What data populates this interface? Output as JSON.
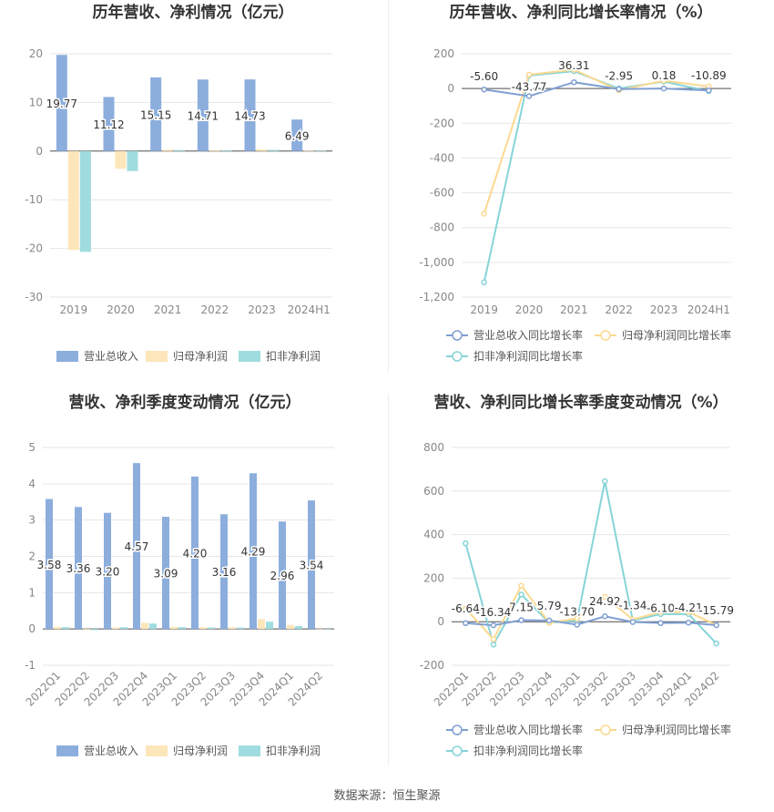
{
  "footer": {
    "source": "数据来源：恒生聚源"
  },
  "colors": {
    "revenue": "#8caedd",
    "net_profit": "#fde6ba",
    "deducted_profit": "#9fdcdf",
    "rev_line": "#7f9fd2",
    "np_line": "#fbd990",
    "dp_line": "#86d4d8",
    "grid": "#e6e6e6",
    "axis": "#555555",
    "tick": "#888888",
    "title": "#333333"
  },
  "chart_data": [
    {
      "type": "bar",
      "title": "历年营收、净利情况（亿元）",
      "categories": [
        "2019",
        "2020",
        "2021",
        "2022",
        "2023",
        "2024H1"
      ],
      "series": [
        {
          "name": "营业总收入",
          "values": [
            19.77,
            11.12,
            15.15,
            14.71,
            14.73,
            6.49
          ]
        },
        {
          "name": "归母净利润",
          "values": [
            -20.3,
            -3.6,
            0.3,
            0.2,
            0.35,
            0.05
          ]
        },
        {
          "name": "扣非净利润",
          "values": [
            -20.7,
            -4.1,
            0.2,
            0.15,
            0.25,
            0.05
          ]
        }
      ],
      "labels": [
        "19.77",
        "11.12",
        "15.15",
        "14.71",
        "14.73",
        "6.49"
      ],
      "ylim": [
        -30,
        20
      ],
      "yticks": [
        "20",
        "10",
        "0",
        "-10",
        "-20",
        "-30"
      ],
      "legend": "bottom"
    },
    {
      "type": "line",
      "title": "历年营收、净利同比增长率情况（%）",
      "categories": [
        "2019",
        "2020",
        "2021",
        "2022",
        "2023",
        "2024H1"
      ],
      "series": [
        {
          "name": "营业总收入同比增长率",
          "values": [
            -5.6,
            -43.77,
            36.31,
            -2.95,
            0.18,
            -10.89
          ]
        },
        {
          "name": "归母净利润同比增长率",
          "values": [
            -720,
            80,
            108,
            -10,
            45,
            12
          ]
        },
        {
          "name": "扣非净利润同比增长率",
          "values": [
            -1115,
            75,
            100,
            0,
            40,
            -15
          ]
        }
      ],
      "labels": [
        "-5.60",
        "-43.77",
        "36.31",
        "-2.95",
        "0.18",
        "-10.89"
      ],
      "ylim": [
        -1200,
        200
      ],
      "yticks": [
        "200",
        "0",
        "-200",
        "-400",
        "-600",
        "-800",
        "-1,000",
        "-1,200"
      ],
      "legend": "bottom"
    },
    {
      "type": "bar",
      "title": "营收、净利季度变动情况（亿元）",
      "categories": [
        "2022Q1",
        "2022Q2",
        "2022Q3",
        "2022Q4",
        "2023Q1",
        "2023Q2",
        "2023Q3",
        "2023Q4",
        "2024Q1",
        "2024Q2"
      ],
      "series": [
        {
          "name": "营业总收入",
          "values": [
            3.58,
            3.36,
            3.2,
            4.57,
            3.09,
            4.2,
            3.16,
            4.29,
            2.96,
            3.54
          ]
        },
        {
          "name": "归母净利润",
          "values": [
            0.06,
            -0.02,
            0.04,
            0.17,
            0.06,
            0.05,
            0.05,
            0.27,
            0.11,
            -0.01
          ]
        },
        {
          "name": "扣非净利润",
          "values": [
            0.05,
            -0.03,
            0.05,
            0.15,
            0.05,
            0.04,
            0.04,
            0.2,
            0.08,
            0.0
          ]
        }
      ],
      "labels": [
        "3.58",
        "3.36",
        "3.20",
        "4.57",
        "3.09",
        "4.20",
        "3.16",
        "4.29",
        "2.96",
        "3.54"
      ],
      "ylim": [
        -1,
        5
      ],
      "yticks": [
        "5",
        "4",
        "3",
        "2",
        "1",
        "0",
        "-1"
      ],
      "legend": "bottom"
    },
    {
      "type": "line",
      "title": "营收、净利同比增长率季度变动情况（%）",
      "categories": [
        "2022Q1",
        "2022Q2",
        "2022Q3",
        "2022Q4",
        "2023Q1",
        "2023Q2",
        "2023Q3",
        "2023Q4",
        "2024Q1",
        "2024Q2"
      ],
      "series": [
        {
          "name": "营业总收入同比增长率",
          "values": [
            -6.64,
            -16.34,
            7.15,
            5.79,
            -13.7,
            24.92,
            -1.34,
            -6.1,
            -4.21,
            -15.79
          ]
        },
        {
          "name": "归母净利润同比增长率",
          "values": [
            60,
            -80,
            165,
            -5,
            15,
            115,
            10,
            45,
            45,
            -15
          ]
        },
        {
          "name": "扣非净利润同比增长率",
          "values": [
            360,
            -105,
            125,
            -5,
            5,
            645,
            5,
            35,
            35,
            -100
          ]
        }
      ],
      "labels": [
        "-6.64",
        "-16.34",
        "7.15",
        "5.79",
        "-13.70",
        "24.92",
        "-1.34",
        "-6.10",
        "-4.21",
        "-15.79"
      ],
      "ylim": [
        -200,
        800
      ],
      "yticks": [
        "800",
        "600",
        "400",
        "200",
        "0",
        "-200"
      ],
      "legend": "bottom"
    }
  ]
}
